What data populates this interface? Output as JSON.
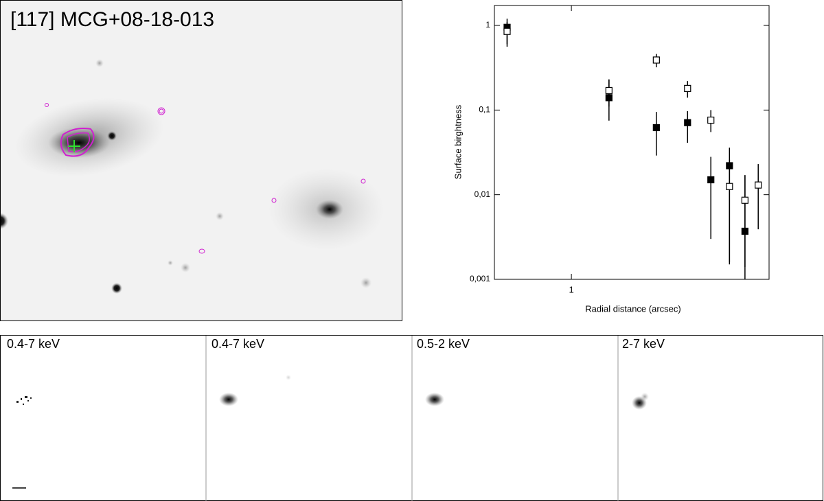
{
  "image_title": "[117] MCG+08-18-013",
  "panels": [
    "0.4-7 keV",
    "0.4-7 keV",
    "0.5-2 keV",
    "2-7 keV"
  ],
  "chart_data": {
    "type": "scatter",
    "xlabel": "Radial distance (arcsec)",
    "ylabel": "Surface birghtness",
    "xscale": "log",
    "yscale": "log",
    "xlim": [
      0.436,
      8.43
    ],
    "ylim": [
      0.001,
      1.72
    ],
    "xticks": [
      1
    ],
    "yticks": [
      {
        "value": 0.001,
        "label": "0,001"
      },
      {
        "value": 0.01,
        "label": "0,01"
      },
      {
        "value": 0.1,
        "label": "0,1"
      },
      1
    ],
    "series": [
      {
        "color": "#000000",
        "filled": true,
        "x": [
          0.5,
          1.5,
          2.5,
          3.5,
          4.5,
          5.5,
          6.5
        ],
        "values": [
          0.95,
          0.14,
          0.062,
          0.071,
          0.015,
          0.022,
          0.0037
        ],
        "upper": [
          1.2,
          0.23,
          0.095,
          0.097,
          0.028,
          0.036,
          0.017
        ],
        "lower": [
          0.56,
          0.075,
          0.029,
          0.041,
          0.003,
          0.0015,
          0.001
        ]
      },
      {
        "color": "#000000",
        "filled": false,
        "x": [
          0.5,
          1.5,
          2.5,
          3.5,
          4.5,
          5.5,
          6.5,
          7.5
        ],
        "values": [
          0.85,
          0.17,
          0.39,
          0.18,
          0.076,
          0.0125,
          0.0086,
          0.013
        ],
        "upper": [
          1.1,
          0.23,
          0.46,
          0.22,
          0.1,
          0.026,
          0.017,
          0.023
        ],
        "lower": [
          0.6,
          0.11,
          0.32,
          0.14,
          0.055,
          0.0016,
          0.0014,
          0.0039
        ]
      }
    ]
  }
}
